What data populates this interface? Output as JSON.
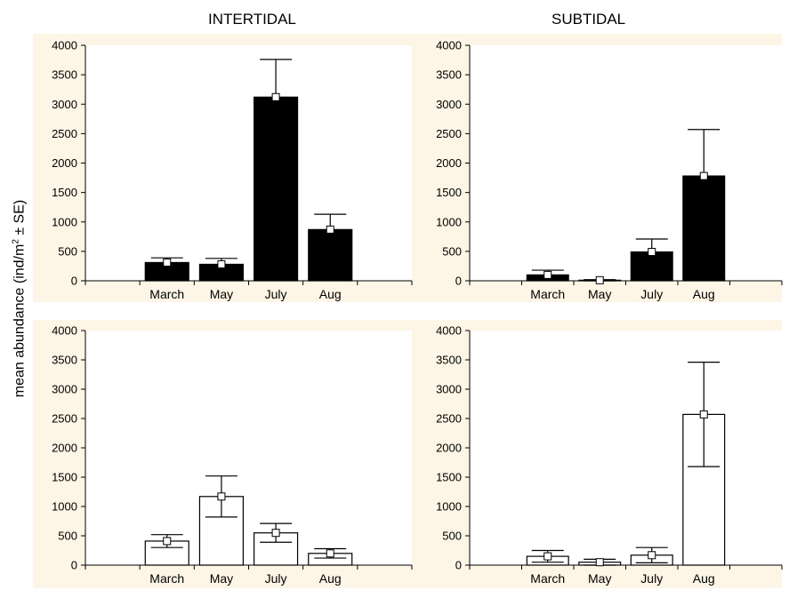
{
  "figure": {
    "col_titles": [
      "INTERTIDAL",
      "SUBTIDAL"
    ],
    "ylabel": {
      "prefix": "mean abundance (ind/m",
      "sup": "2",
      "suffix": " ± SE)"
    },
    "colors": {
      "panel_bg": "#fdf5e6",
      "filled_bar": "#000000",
      "open_bar": "#ffffff",
      "marker": "#ffffff"
    }
  },
  "chart_data": [
    {
      "type": "bar",
      "panel": "intertidal-filled",
      "title": "INTERTIDAL",
      "categories": [
        "March",
        "May",
        "July",
        "Aug"
      ],
      "values": [
        310,
        280,
        3120,
        870
      ],
      "errors": [
        80,
        100,
        640,
        260
      ],
      "fill": "filled",
      "ylim": [
        0,
        4000
      ],
      "yticks": [
        0,
        500,
        1000,
        1500,
        2000,
        2500,
        3000,
        3500,
        4000
      ]
    },
    {
      "type": "bar",
      "panel": "subtidal-filled",
      "title": "SUBTIDAL",
      "categories": [
        "March",
        "May",
        "July",
        "Aug"
      ],
      "values": [
        100,
        10,
        490,
        1780
      ],
      "errors": [
        80,
        10,
        220,
        790
      ],
      "fill": "filled",
      "ylim": [
        0,
        4000
      ],
      "yticks": [
        0,
        500,
        1000,
        1500,
        2000,
        2500,
        3000,
        3500,
        4000
      ]
    },
    {
      "type": "bar",
      "panel": "intertidal-open",
      "categories": [
        "March",
        "May",
        "July",
        "Aug"
      ],
      "values": [
        410,
        1170,
        550,
        200
      ],
      "errors": [
        110,
        350,
        160,
        80
      ],
      "fill": "open",
      "ylim": [
        0,
        4000
      ],
      "yticks": [
        0,
        500,
        1000,
        1500,
        2000,
        2500,
        3000,
        3500,
        4000
      ]
    },
    {
      "type": "bar",
      "panel": "subtidal-open",
      "categories": [
        "March",
        "May",
        "July",
        "Aug"
      ],
      "values": [
        150,
        50,
        170,
        2570
      ],
      "errors": [
        100,
        50,
        130,
        890
      ],
      "fill": "open",
      "ylim": [
        0,
        4000
      ],
      "yticks": [
        0,
        500,
        1000,
        1500,
        2000,
        2500,
        3000,
        3500,
        4000
      ]
    }
  ]
}
